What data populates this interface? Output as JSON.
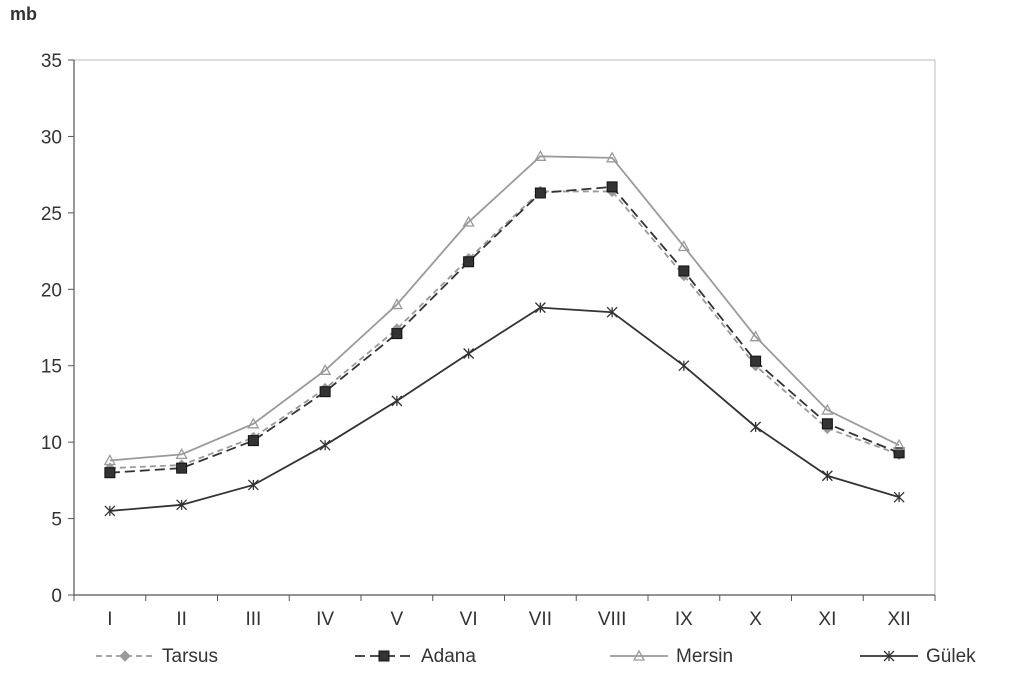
{
  "chart_data": {
    "type": "line",
    "ylabel": "mb",
    "ylim": [
      0,
      35
    ],
    "yticks": [
      "0",
      "5",
      "10",
      "15",
      "20",
      "25",
      "30",
      "35"
    ],
    "categories": [
      "I",
      "II",
      "III",
      "IV",
      "V",
      "VI",
      "VII",
      "VIII",
      "IX",
      "X",
      "XI",
      "XII"
    ],
    "grid": false,
    "legend_position": "bottom",
    "series": [
      {
        "name": "Tarsus",
        "values": [
          8.3,
          8.5,
          10.3,
          13.5,
          17.4,
          22.0,
          26.4,
          26.4,
          20.9,
          15.0,
          10.9,
          9.2
        ],
        "color": "#9a9a9a",
        "marker": "diamond",
        "dash": "6,4"
      },
      {
        "name": "Adana",
        "values": [
          8.0,
          8.3,
          10.1,
          13.3,
          17.1,
          21.8,
          26.3,
          26.7,
          21.2,
          15.3,
          11.2,
          9.3
        ],
        "color": "#333333",
        "marker": "square",
        "dash": "10,5"
      },
      {
        "name": "Mersin",
        "values": [
          8.8,
          9.2,
          11.2,
          14.7,
          19.0,
          24.4,
          28.7,
          28.6,
          22.8,
          16.9,
          12.1,
          9.8
        ],
        "color": "#9a9a9a",
        "marker": "triangle",
        "dash": ""
      },
      {
        "name": "Gülek",
        "values": [
          5.5,
          5.9,
          7.2,
          9.8,
          12.7,
          15.8,
          18.8,
          18.5,
          15.0,
          11.0,
          7.8,
          6.4
        ],
        "color": "#333333",
        "marker": "star",
        "dash": ""
      }
    ]
  }
}
